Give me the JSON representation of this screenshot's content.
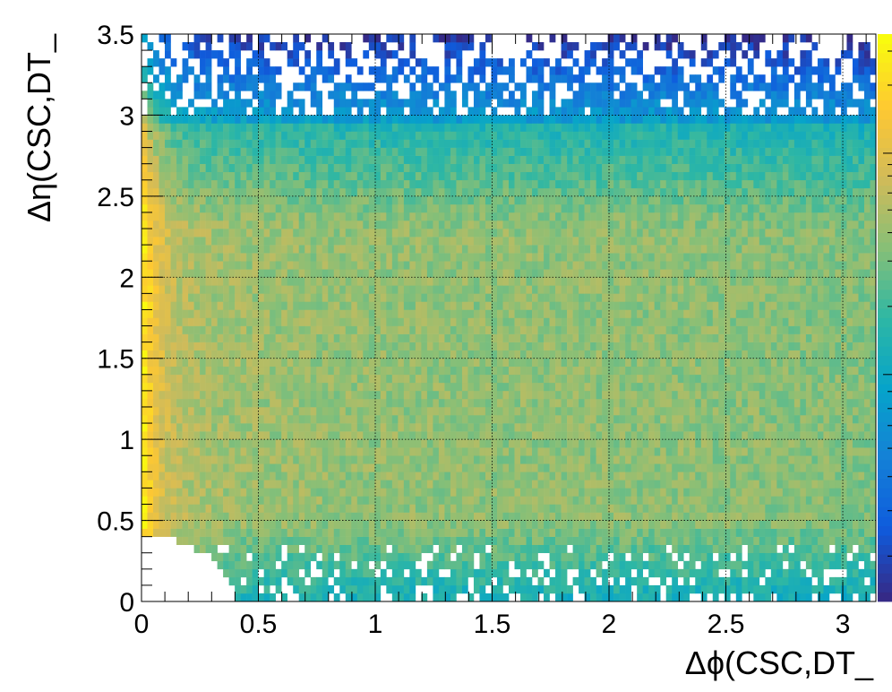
{
  "chart_data": {
    "type": "heatmap",
    "xlabel": "Δϕ(CSC,DT_",
    "ylabel": "Δη(CSC,DT_",
    "xlim": [
      0,
      3.1416
    ],
    "ylim": [
      0,
      3.5
    ],
    "x_ticks": [
      "0",
      "0.5",
      "1",
      "1.5",
      "2",
      "2.5",
      "3"
    ],
    "y_ticks": [
      "0",
      "0.5",
      "1",
      "1.5",
      "2",
      "2.5",
      "3",
      "3.5"
    ],
    "grid": true,
    "colorbar": true,
    "x_bins": 126,
    "y_bins": 70,
    "empty_region_note": "no entries where Δϕ²+Δη² < 0.4²",
    "density_profile": "highest near Δϕ=0 and Δη 0.4–2.6; sparse above Δη≈3 and below Δη≈0.3"
  },
  "colors": {
    "palette": [
      "#352a87",
      "#0f5cdd",
      "#1481d6",
      "#06a4ca",
      "#2eb7a4",
      "#87bf77",
      "#d1bb59",
      "#fec832",
      "#f9fb0e"
    ]
  }
}
